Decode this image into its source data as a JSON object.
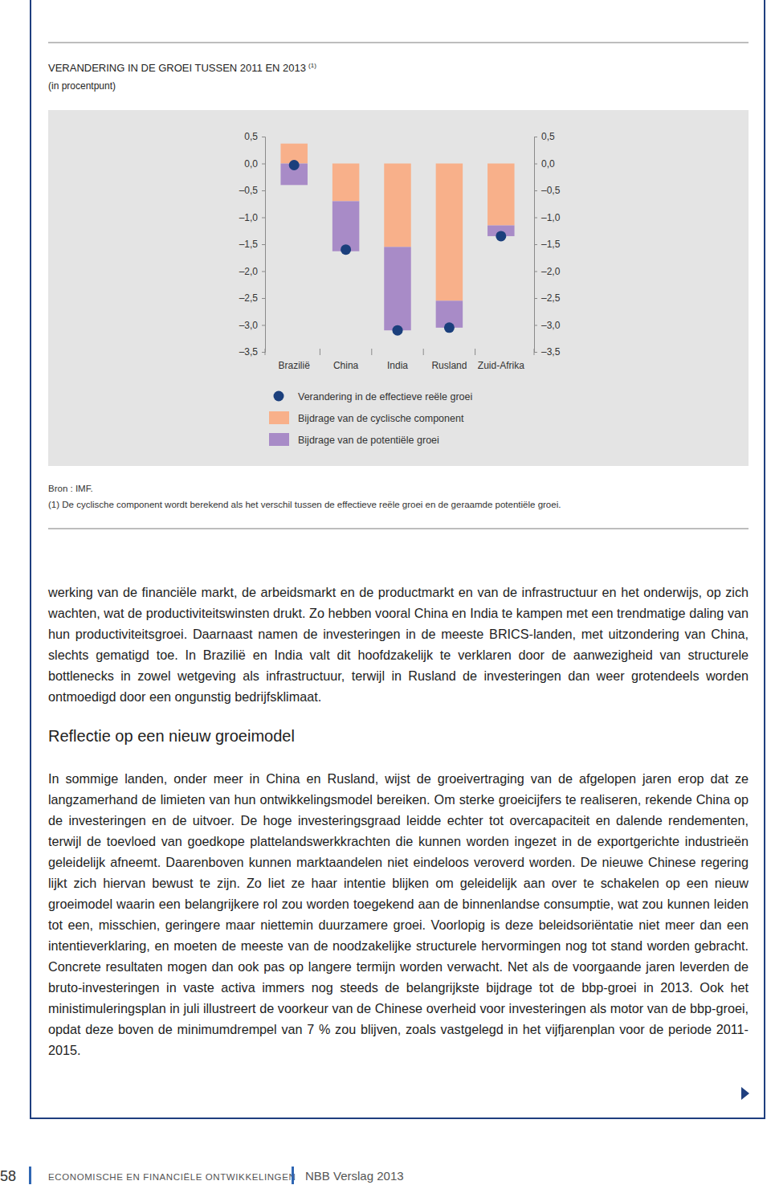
{
  "chart_data": {
    "type": "bar",
    "title": "VERANDERING IN DE GROEI TUSSEN 2011 EN 2013",
    "annotations": [
      "(1)"
    ],
    "subtitle": "(in procentpunt)",
    "stacked": true,
    "categories": [
      "Brazilië",
      "China",
      "India",
      "Rusland",
      "Zuid-Afrika"
    ],
    "series": [
      {
        "name": "Verandering in de effectieve reële groei",
        "type": "scatter",
        "marker": "circle",
        "color": "#1b3f7c",
        "values": [
          -0.03,
          -1.6,
          -3.1,
          -3.05,
          -1.35
        ]
      },
      {
        "name": "Bijdrage van de cyclische component",
        "type": "bar",
        "color": "#f8b08a",
        "values": [
          0.37,
          -0.7,
          -1.55,
          -2.55,
          -1.15
        ]
      },
      {
        "name": "Bijdrage van de potentiële groei",
        "type": "bar",
        "color": "#a88bc7",
        "values": [
          -0.4,
          -0.93,
          -1.55,
          -0.5,
          -0.2
        ]
      }
    ],
    "ylim": [
      -3.5,
      0.5
    ],
    "yticks": [
      {
        "value": 0.5,
        "label": "0,5"
      },
      {
        "value": 0,
        "label": "0,0"
      },
      {
        "value": -0.5,
        "label": "–0,5"
      },
      {
        "value": -1,
        "label": "–1,0"
      },
      {
        "value": -1.5,
        "label": "–1,5"
      },
      {
        "value": -2,
        "label": "–2,0"
      },
      {
        "value": -2.5,
        "label": "–2,5"
      },
      {
        "value": -3,
        "label": "–3,0"
      },
      {
        "value": -3.5,
        "label": "–3,5"
      }
    ]
  },
  "document": {
    "source": "Bron : IMF.",
    "footnote": "(1) De cyclische component wordt berekend als het verschil tussen de effectieve reële groei en de geraamde potentiële groei.",
    "paragraphs": [
      "werking van de financiële markt, de arbeidsmarkt en de productmarkt en van de infrastructuur en het onderwijs, op zich wachten, wat de productiviteitswinsten drukt. Zo hebben vooral China en India te kampen met een trendmatige daling van hun productiviteitsgroei. Daarnaast namen de investeringen in de meeste BRICS-landen, met uitzondering van China, slechts gematigd toe. In Brazilië en India valt dit hoofdzakelijk te verklaren door de aanwezigheid van structurele bottlenecks in zowel wetgeving als infrastructuur, terwijl in Rusland de investeringen dan weer grotendeels worden ontmoedigd door een ongunstig bedrijfsklimaat.",
      "In sommige landen, onder meer in China en Rusland, wijst de groeivertraging van de afgelopen jaren erop dat ze langzamerhand de limieten van hun ontwikkelingsmodel bereiken. Om sterke groeicijfers te realiseren, rekende China op de investeringen en de uitvoer. De hoge investeringsgraad leidde echter tot overcapaciteit en dalende rendementen, terwijl de toevloed van goedkope plattelandswerkkrachten die kunnen worden ingezet in de exportgerichte industrieën geleidelijk afneemt. Daarenboven kunnen marktaandelen niet eindeloos veroverd worden. De nieuwe Chinese regering lijkt zich hiervan bewust te zijn. Zo liet ze haar intentie blijken om geleidelijk aan over te schakelen op een nieuw groeimodel waarin een belangrijkere rol zou worden toegekend aan de binnenlandse consumptie, wat zou kunnen leiden tot een, misschien, geringere maar niettemin duurzamere groei. Voorlopig is deze beleidsoriëntatie niet meer dan een intentieverklaring, en moeten de meeste van de noodzakelijke structurele hervormingen nog tot stand worden gebracht. Concrete resultaten mogen dan ook pas op langere termijn worden verwacht. Net als de voorgaande jaren leverden de bruto-investeringen in vaste activa immers nog steeds de belangrijkste bijdrage tot de bbp-groei in 2013. Ook het ministimuleringsplan in juli illustreert de voorkeur van de Chinese overheid voor investeringen als motor van de bbp-groei, opdat deze boven de minimumdrempel van 7 % zou blijven, zoals vastgelegd in het vijfjarenplan voor de periode 2011-2015."
    ],
    "heading": "Reflectie op een nieuw groeimodel",
    "page_number": "58",
    "footer_section": "ECONOMISCHE EN FINANCIËLE ONTWIKKELINGEN",
    "footer_title": "NBB Verslag 2013"
  }
}
